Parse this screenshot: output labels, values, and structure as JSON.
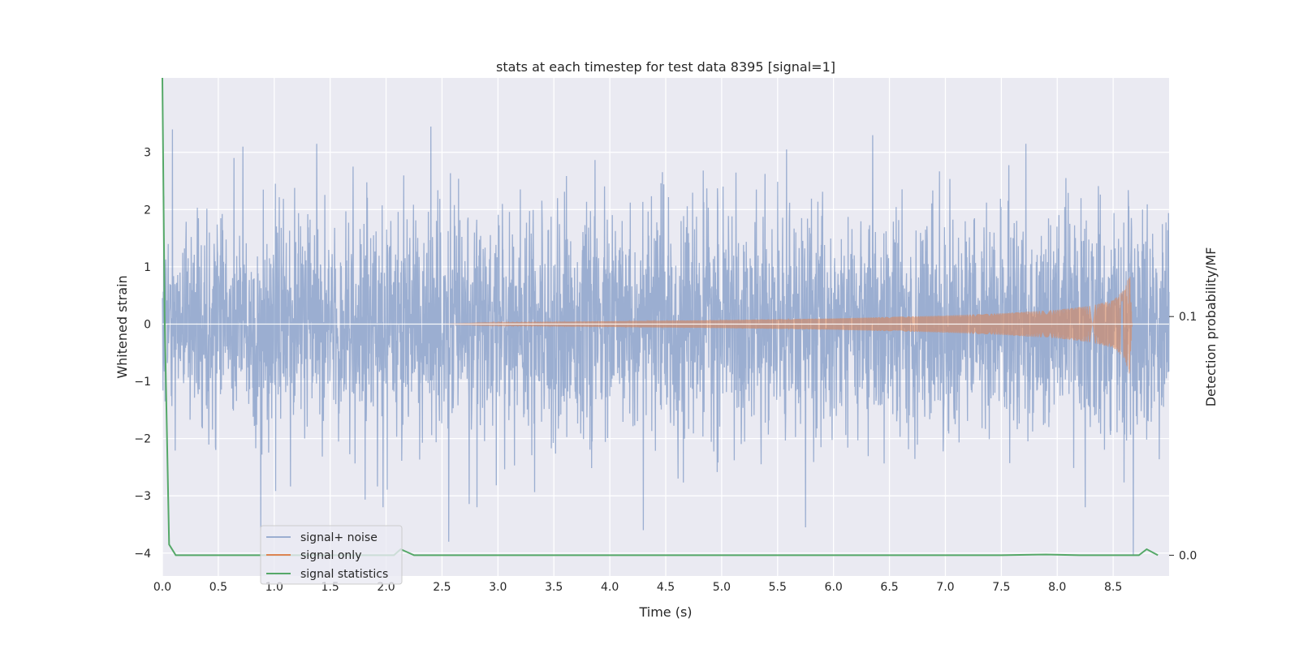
{
  "chart_data": {
    "type": "line",
    "title": "stats at each timestep for test data 8395 [signal=1]",
    "xlabel": "Time (s)",
    "ylabel": "Whitened strain",
    "ylabel_right": "Detection probability/MF",
    "xlim": [
      0.0,
      9.0
    ],
    "ylim": [
      -4.4,
      4.3
    ],
    "ylim_right": [
      -0.0087,
      0.2
    ],
    "x_ticks": [
      "0.0",
      "0.5",
      "1.0",
      "1.5",
      "2.0",
      "2.5",
      "3.0",
      "3.5",
      "4.0",
      "4.5",
      "5.0",
      "5.5",
      "6.0",
      "6.5",
      "7.0",
      "7.5",
      "8.0",
      "8.5"
    ],
    "y_ticks": [
      "3",
      "2",
      "1",
      "0",
      "−1",
      "−2",
      "−3",
      "−4"
    ],
    "y_ticks_right": [
      "0.1",
      "0.0"
    ],
    "grid": true,
    "legend_position": "bottom-left",
    "series": [
      {
        "name": "signal+ noise",
        "color": "#4c72b0",
        "alpha": 0.5,
        "description": "Gaussian-like whitened noise, roughly within ±2.5, peaks ~3.4, troughs ~-4.0",
        "x_range": [
          0.0,
          9.0
        ],
        "amplitude_std": 1.0,
        "peaks": [
          [
            0.09,
            3.4
          ],
          [
            0.72,
            3.1
          ],
          [
            1.38,
            3.15
          ],
          [
            2.4,
            3.45
          ],
          [
            5.58,
            3.05
          ],
          [
            6.35,
            3.3
          ],
          [
            7.72,
            3.15
          ],
          [
            0.88,
            -3.6
          ],
          [
            2.56,
            -3.8
          ],
          [
            4.3,
            -3.6
          ],
          [
            5.75,
            -3.55
          ],
          [
            8.68,
            -4.05
          ]
        ]
      },
      {
        "name": "signal only",
        "color": "#dd8452",
        "description": "Chirp signal growing in amplitude up to merger near t=8.65 s",
        "envelope": [
          [
            2.5,
            0.0
          ],
          [
            3.0,
            0.03
          ],
          [
            4.0,
            0.05
          ],
          [
            5.0,
            0.07
          ],
          [
            6.0,
            0.1
          ],
          [
            7.0,
            0.15
          ],
          [
            7.5,
            0.19
          ],
          [
            8.0,
            0.25
          ],
          [
            8.3,
            0.32
          ],
          [
            8.5,
            0.42
          ],
          [
            8.6,
            0.6
          ],
          [
            8.65,
            0.9
          ],
          [
            8.67,
            0.0
          ]
        ]
      },
      {
        "name": "signal statistics",
        "color": "#55a868",
        "axis": "right",
        "x": [
          0.0,
          0.02,
          0.06,
          0.12,
          1.0,
          2.0,
          2.07,
          2.13,
          2.25,
          3.0,
          5.0,
          7.5,
          7.9,
          8.2,
          8.73,
          8.8,
          8.9
        ],
        "values": [
          0.2,
          0.1,
          0.0045,
          0.0,
          0.0,
          0.0,
          0.0,
          0.0025,
          0.0,
          0.0,
          0.0,
          0.0,
          0.0003,
          0.0,
          0.0,
          0.0025,
          0.0
        ]
      }
    ]
  }
}
